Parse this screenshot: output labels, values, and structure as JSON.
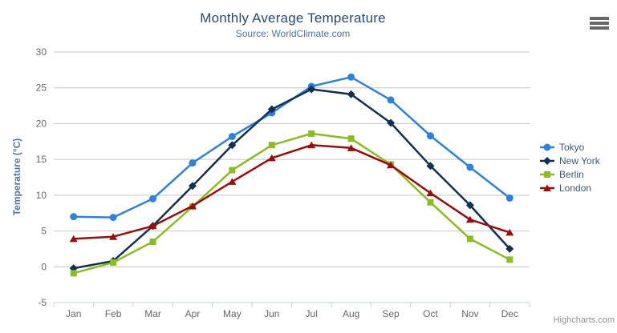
{
  "header": {
    "title": "Monthly Average Temperature",
    "subtitle": "Source: WorldClimate.com"
  },
  "chart_data": {
    "type": "line",
    "title": "Monthly Average Temperature",
    "subtitle": "Source: WorldClimate.com",
    "categories": [
      "Jan",
      "Feb",
      "Mar",
      "Apr",
      "May",
      "Jun",
      "Jul",
      "Aug",
      "Sep",
      "Oct",
      "Nov",
      "Dec"
    ],
    "series": [
      {
        "name": "Tokyo",
        "color": "#2f81dc",
        "marker": "circle",
        "values": [
          7.0,
          6.9,
          9.5,
          14.5,
          18.2,
          21.5,
          25.2,
          26.5,
          23.3,
          18.3,
          13.9,
          9.6
        ]
      },
      {
        "name": "New York",
        "color": "#12304f",
        "marker": "diamond",
        "values": [
          -0.2,
          0.8,
          5.7,
          11.3,
          17.0,
          22.0,
          24.8,
          24.1,
          20.1,
          14.1,
          8.6,
          2.5
        ]
      },
      {
        "name": "Berlin",
        "color": "#8bbc21",
        "marker": "square",
        "values": [
          -0.9,
          0.6,
          3.5,
          8.4,
          13.5,
          17.0,
          18.6,
          17.9,
          14.3,
          9.0,
          3.9,
          1.0
        ]
      },
      {
        "name": "London",
        "color": "#9a0d0d",
        "marker": "triangle",
        "values": [
          3.9,
          4.2,
          5.7,
          8.5,
          11.9,
          15.2,
          17.0,
          16.6,
          14.2,
          10.3,
          6.6,
          4.8
        ]
      }
    ],
    "xlabel": "",
    "ylabel": "Temperature (°C)",
    "ylim": [
      -5,
      30
    ],
    "ytick_step": 5,
    "yticks": [
      -5,
      0,
      5,
      10,
      15,
      20,
      25,
      30
    ],
    "grid": true,
    "legend_position": "right"
  },
  "colors": {
    "title": "#274b6d",
    "subtitle": "#4d759e",
    "axis_title": "#4d759e",
    "tick_label": "#666666",
    "gridline": "#C6C6C6",
    "axis_line": "#C0D0E0",
    "legend_text": "#3E576F",
    "credits_text": "#909090",
    "menu_icon": "#666666"
  },
  "export_menu": {
    "icon": "hamburger-icon"
  },
  "credits": {
    "label": "Highcharts.com"
  }
}
